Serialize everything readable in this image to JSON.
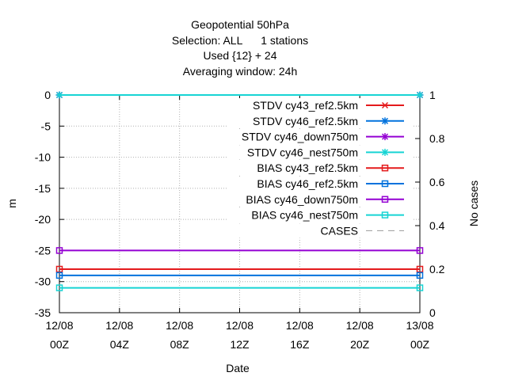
{
  "chart_data": {
    "type": "line",
    "title_lines": [
      "Geopotential 50hPa",
      "Selection: ALL      1 stations",
      "Used {12} + 24",
      "Averaging window: 24h"
    ],
    "xlabel": "Date",
    "ylabel": "m",
    "y2label": "No cases",
    "x_ticks": [
      {
        "line1": "12/08",
        "line2": "00Z"
      },
      {
        "line1": "12/08",
        "line2": "04Z"
      },
      {
        "line1": "12/08",
        "line2": "08Z"
      },
      {
        "line1": "12/08",
        "line2": "12Z"
      },
      {
        "line1": "12/08",
        "line2": "16Z"
      },
      {
        "line1": "12/08",
        "line2": "20Z"
      },
      {
        "line1": "13/08",
        "line2": "00Z"
      }
    ],
    "x_range_hours": [
      0,
      24
    ],
    "ylim": [
      -35,
      0
    ],
    "y_ticks": [
      0,
      -5,
      -10,
      -15,
      -20,
      -25,
      -30,
      -35
    ],
    "y2lim": [
      0,
      1
    ],
    "y2_ticks": [
      "1",
      "0.8",
      "0.6",
      "0.4",
      "0.2",
      "0"
    ],
    "grid": true,
    "legend_position": "top-right",
    "series": [
      {
        "name": "STDV cy43_ref2.5km",
        "color": "#e41a1c",
        "marker": "x",
        "x": [
          0,
          24
        ],
        "y": [
          0,
          0
        ]
      },
      {
        "name": "STDV cy46_ref2.5km",
        "color": "#0072dd",
        "marker": "star",
        "x": [
          0,
          24
        ],
        "y": [
          0,
          0
        ]
      },
      {
        "name": "STDV cy46_down750m",
        "color": "#9400d3",
        "marker": "star",
        "x": [
          0,
          24
        ],
        "y": [
          0,
          0
        ]
      },
      {
        "name": "STDV cy46_nest750m",
        "color": "#17d4d4",
        "marker": "star",
        "x": [
          0,
          24
        ],
        "y": [
          0,
          0
        ]
      },
      {
        "name": "BIAS cy43_ref2.5km",
        "color": "#e41a1c",
        "marker": "square",
        "x": [
          0,
          24
        ],
        "y": [
          -28,
          -28
        ]
      },
      {
        "name": "BIAS cy46_ref2.5km",
        "color": "#0072dd",
        "marker": "square",
        "x": [
          0,
          24
        ],
        "y": [
          -29,
          -29
        ]
      },
      {
        "name": "BIAS cy46_down750m",
        "color": "#9400d3",
        "marker": "square",
        "x": [
          0,
          24
        ],
        "y": [
          -25,
          -25
        ]
      },
      {
        "name": "BIAS cy46_nest750m",
        "color": "#17d4d4",
        "marker": "square",
        "x": [
          0,
          24
        ],
        "y": [
          -31,
          -31
        ]
      },
      {
        "name": "CASES",
        "color": "#999999",
        "marker": "none",
        "dashed": true,
        "x": [],
        "y": []
      }
    ]
  }
}
